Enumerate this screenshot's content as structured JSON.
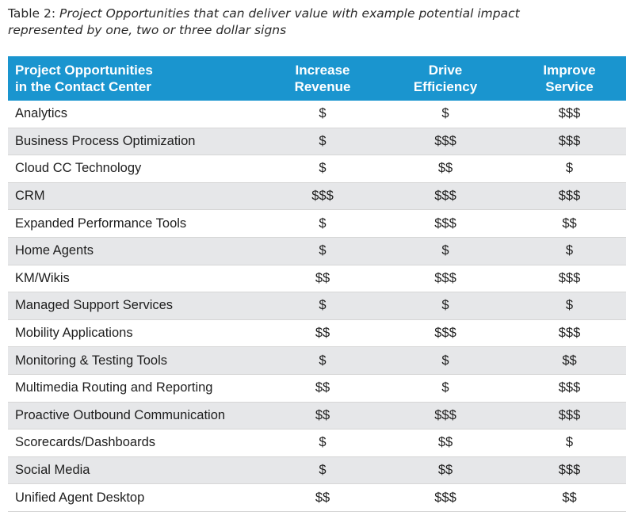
{
  "caption": {
    "lead": "Table 2: ",
    "text": "Project Opportunities that can deliver value with example potential impact represented by one, two or three dollar signs"
  },
  "table": {
    "headers": {
      "col0_line1": "Project Opportunities",
      "col0_line2": "in the Contact Center",
      "col1_line1": "Increase",
      "col1_line2": "Revenue",
      "col2_line1": "Drive",
      "col2_line2": "Efficiency",
      "col3_line1": "Improve",
      "col3_line2": "Service"
    },
    "rows": [
      {
        "name": "Analytics",
        "revenue": "$",
        "efficiency": "$",
        "service": "$$$"
      },
      {
        "name": "Business Process Optimization",
        "revenue": "$",
        "efficiency": "$$$",
        "service": "$$$"
      },
      {
        "name": "Cloud CC Technology",
        "revenue": "$",
        "efficiency": "$$",
        "service": "$"
      },
      {
        "name": "CRM",
        "revenue": "$$$",
        "efficiency": "$$$",
        "service": "$$$"
      },
      {
        "name": "Expanded Performance Tools",
        "revenue": "$",
        "efficiency": "$$$",
        "service": "$$"
      },
      {
        "name": "Home Agents",
        "revenue": "$",
        "efficiency": "$",
        "service": "$"
      },
      {
        "name": "KM/Wikis",
        "revenue": "$$",
        "efficiency": "$$$",
        "service": "$$$"
      },
      {
        "name": "Managed Support Services",
        "revenue": "$",
        "efficiency": "$",
        "service": "$"
      },
      {
        "name": "Mobility Applications",
        "revenue": "$$",
        "efficiency": "$$$",
        "service": "$$$"
      },
      {
        "name": "Monitoring & Testing Tools",
        "revenue": "$",
        "efficiency": "$",
        "service": "$$"
      },
      {
        "name": "Multimedia Routing and Reporting",
        "revenue": "$$",
        "efficiency": "$",
        "service": "$$$"
      },
      {
        "name": "Proactive Outbound Communication",
        "revenue": "$$",
        "efficiency": "$$$",
        "service": "$$$"
      },
      {
        "name": "Scorecards/Dashboards",
        "revenue": "$",
        "efficiency": "$$",
        "service": "$"
      },
      {
        "name": "Social Media",
        "revenue": "$",
        "efficiency": "$$",
        "service": "$$$"
      },
      {
        "name": "Unified Agent Desktop",
        "revenue": "$$",
        "efficiency": "$$$",
        "service": "$$"
      }
    ]
  },
  "colors": {
    "header_bg": "#1a95cf",
    "header_text": "#ffffff",
    "alt_row_bg": "#e6e7e9"
  }
}
